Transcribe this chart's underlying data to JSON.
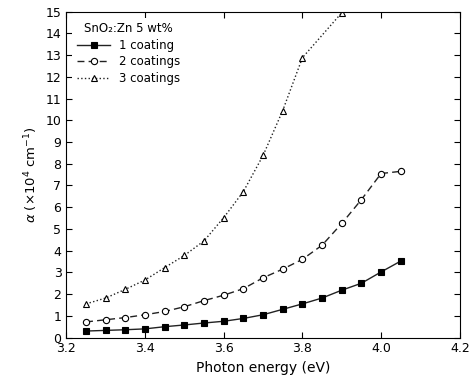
{
  "title": "SnO₂:Zn 5 wt%",
  "xlabel": "Photon energy (eV)",
  "xlim": [
    3.2,
    4.2
  ],
  "ylim": [
    0,
    15
  ],
  "yticks": [
    0,
    1,
    2,
    3,
    4,
    5,
    6,
    7,
    8,
    9,
    10,
    11,
    12,
    13,
    14,
    15
  ],
  "xticks": [
    3.2,
    3.4,
    3.6,
    3.8,
    4.0,
    4.2
  ],
  "coating1_x": [
    3.25,
    3.3,
    3.35,
    3.4,
    3.45,
    3.5,
    3.55,
    3.6,
    3.65,
    3.7,
    3.75,
    3.8,
    3.85,
    3.9,
    3.95,
    4.0,
    4.05
  ],
  "coating1_y": [
    0.3,
    0.33,
    0.36,
    0.4,
    0.5,
    0.58,
    0.67,
    0.75,
    0.88,
    1.05,
    1.3,
    1.55,
    1.82,
    2.18,
    2.5,
    3.02,
    3.52
  ],
  "coating2_x": [
    3.25,
    3.3,
    3.35,
    3.4,
    3.45,
    3.5,
    3.55,
    3.6,
    3.65,
    3.7,
    3.75,
    3.8,
    3.85,
    3.9,
    3.95,
    4.0,
    4.05
  ],
  "coating2_y": [
    0.72,
    0.82,
    0.92,
    1.05,
    1.2,
    1.42,
    1.7,
    1.95,
    2.25,
    2.75,
    3.15,
    3.6,
    4.25,
    5.25,
    6.35,
    7.55,
    7.65
  ],
  "coating3_x": [
    3.25,
    3.3,
    3.35,
    3.4,
    3.45,
    3.5,
    3.55,
    3.6,
    3.65,
    3.7,
    3.75,
    3.8,
    3.9
  ],
  "coating3_y": [
    1.55,
    1.82,
    2.22,
    2.65,
    3.22,
    3.78,
    4.45,
    5.52,
    6.72,
    8.38,
    10.45,
    12.88,
    14.95
  ],
  "line_color": "#222222",
  "background_color": "#ffffff"
}
